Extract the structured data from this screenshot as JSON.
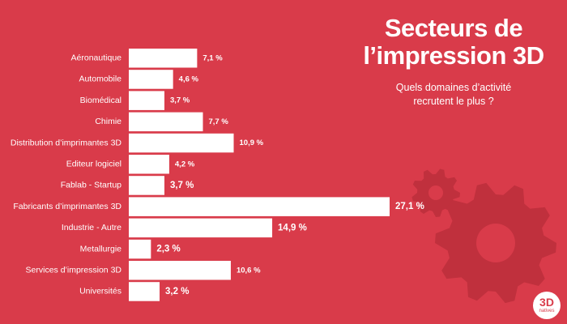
{
  "colors": {
    "background": "#d93b4a",
    "bar": "#ffffff",
    "gear": "#c0303d"
  },
  "icons": [
    "gear-icon-small",
    "gear-icon-large"
  ],
  "header": {
    "title_line1": "Secteurs de",
    "title_line2": "l’impression 3D",
    "subtitle_line1": "Quels domaines d’activité",
    "subtitle_line2": "recrutent le plus ?"
  },
  "logo": {
    "main": "3D",
    "sub": "natives"
  },
  "chart_data": {
    "type": "bar",
    "orientation": "horizontal",
    "title": "Secteurs de l’impression 3D",
    "subtitle": "Quels domaines d’activité recrutent le plus ?",
    "xlabel": "",
    "ylabel": "",
    "grid": false,
    "xlim": [
      0,
      27.1
    ],
    "unit": "%",
    "categories": [
      "Aéronautique",
      "Automobile",
      "Biomédical",
      "Chimie",
      "Distribution d’imprimantes 3D",
      "Editeur logiciel",
      "Fablab - Startup",
      "Fabricants d’imprimantes 3D",
      "Industrie - Autre",
      "Metallurgie",
      "Services d’impression 3D",
      "Universités"
    ],
    "values": [
      7.1,
      4.6,
      3.7,
      7.7,
      10.9,
      4.2,
      3.7,
      27.1,
      14.9,
      2.3,
      10.6,
      3.2
    ],
    "value_labels": [
      "7,1 %",
      "4,6 %",
      "3,7 %",
      "7,7 %",
      "10,9 %",
      "4,2 %",
      "3,7 %",
      "27,1 %",
      "14,9 %",
      "2,3 %",
      "10,6 %",
      "3,2 %"
    ],
    "label_emphasis": [
      "small",
      "small",
      "small",
      "small",
      "small",
      "small",
      "large",
      "large",
      "large",
      "large",
      "small",
      "large"
    ]
  }
}
